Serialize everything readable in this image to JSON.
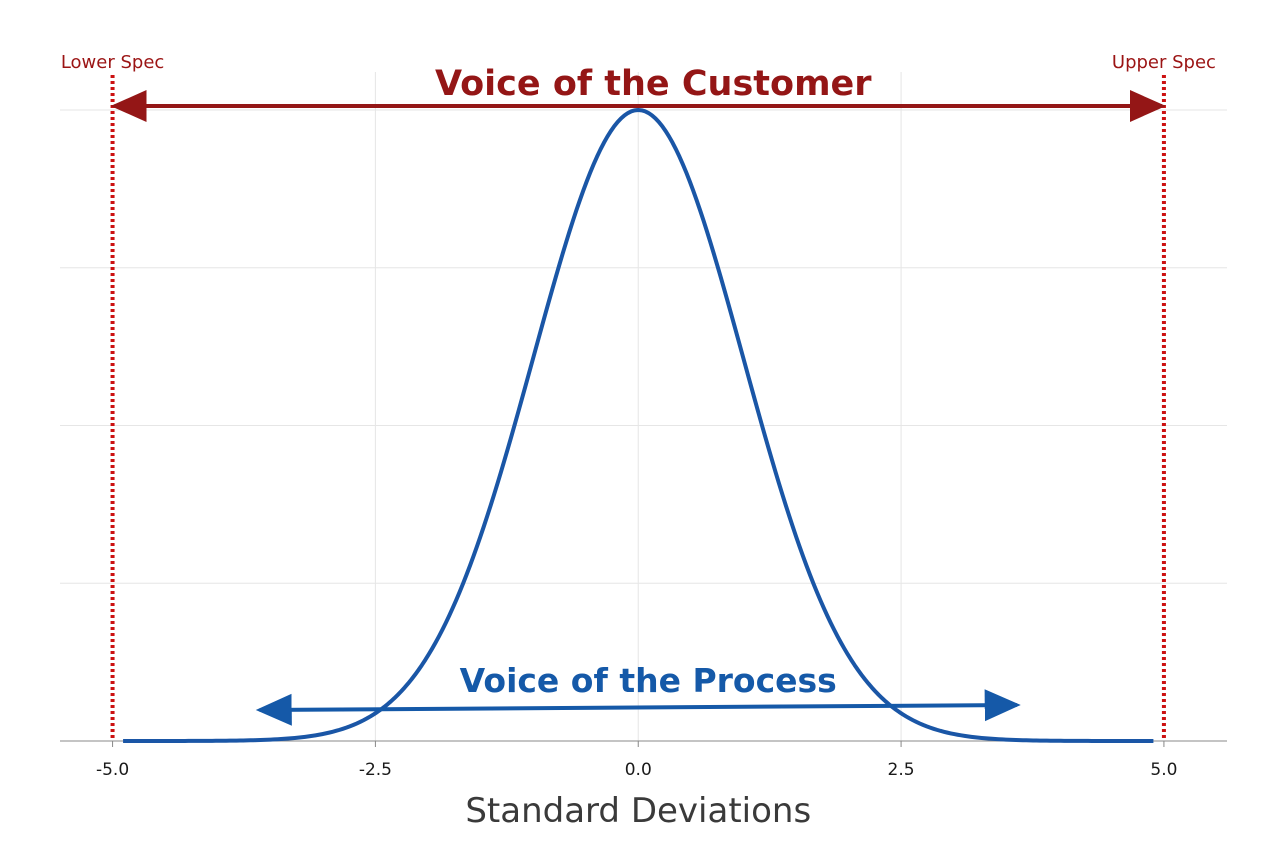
{
  "chart_data": {
    "type": "line",
    "title": "",
    "xlabel": "Standard Deviations",
    "ylabel": "",
    "xlim": [
      -5.5,
      5.6
    ],
    "ylim": [
      0,
      1
    ],
    "grid": true,
    "x_ticks": [
      -5.0,
      -2.5,
      0.0,
      2.5,
      5.0
    ],
    "x_tick_labels": [
      "-5.0",
      "-2.5",
      "0.0",
      "2.5",
      "5.0"
    ],
    "series": [
      {
        "distribution": "normal",
        "mean": 0,
        "std": 1,
        "x_range": [
          -4.9,
          4.9
        ],
        "peak": 1.0,
        "color": "#1a56a6"
      }
    ],
    "spec_limits": [
      {
        "label": "Lower Spec",
        "x": -5.0
      },
      {
        "label": "Upper Spec",
        "x": 5.0
      }
    ],
    "annotations": {
      "voice_of_customer": {
        "text": "Voice of the Customer",
        "from": -5.0,
        "to": 5.0,
        "color": "#941616"
      },
      "voice_of_process": {
        "text": "Voice of the Process",
        "from": -3.6,
        "to": 3.6,
        "color": "#1559a8"
      }
    }
  }
}
